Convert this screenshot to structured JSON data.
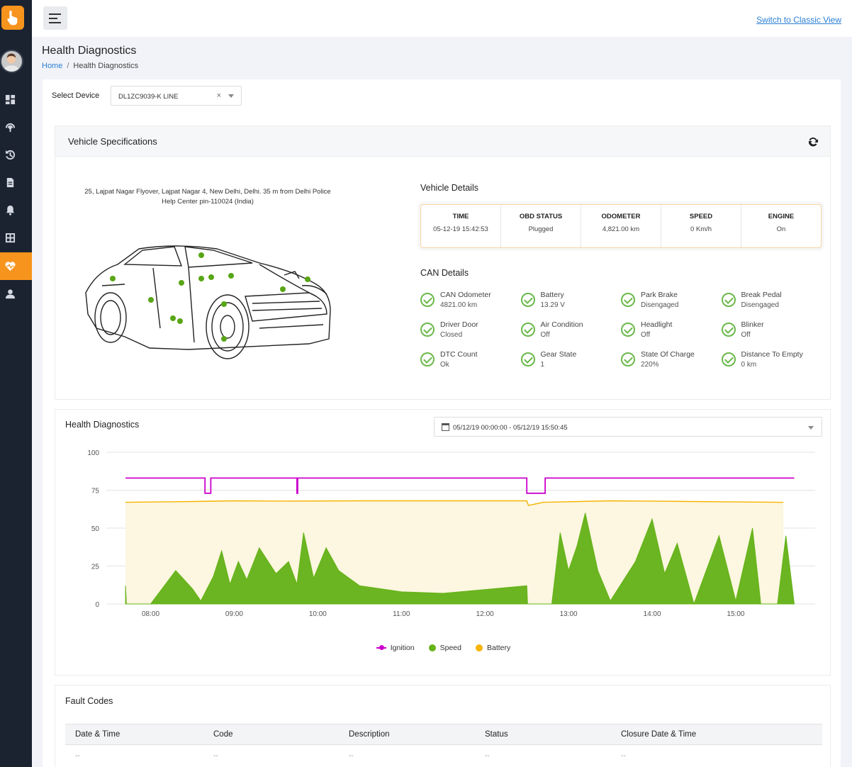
{
  "header": {
    "classic_link": "Switch to Classic View",
    "page_title": "Health Diagnostics",
    "breadcrumb": {
      "home": "Home",
      "current": "Health Diagnostics"
    }
  },
  "device": {
    "label": "Select Device",
    "value": "DL1ZC9039-K LINE"
  },
  "vehicle_specs": {
    "title": "Vehicle Specifications",
    "address": "25, Lajpat Nagar Flyover, Lajpat Nagar 4, New Delhi, Delhi. 35 m from Delhi Police Help Center pin-110024 (India)"
  },
  "vehicle_details": {
    "title": "Vehicle Details",
    "columns": [
      {
        "label": "TIME",
        "value": "05-12-19 15:42:53"
      },
      {
        "label": "OBD STATUS",
        "value": "Plugged"
      },
      {
        "label": "ODOMETER",
        "value": "4,821.00 km"
      },
      {
        "label": "SPEED",
        "value": "0 Km/h"
      },
      {
        "label": "ENGINE",
        "value": "On"
      }
    ]
  },
  "can_details": {
    "title": "CAN Details",
    "items": [
      {
        "name": "CAN Odometer",
        "value": "4821.00 km"
      },
      {
        "name": "Battery",
        "value": "13.29 V"
      },
      {
        "name": "Park Brake",
        "value": "Disengaged"
      },
      {
        "name": "Break Pedal",
        "value": "Disengaged"
      },
      {
        "name": "Driver Door",
        "value": "Closed"
      },
      {
        "name": "Air Condition",
        "value": "Off"
      },
      {
        "name": "Headlight",
        "value": "Off"
      },
      {
        "name": "Blinker",
        "value": "Off"
      },
      {
        "name": "DTC Count",
        "value": "Ok"
      },
      {
        "name": "Gear State",
        "value": "1"
      },
      {
        "name": "State Of Charge",
        "value": "220%"
      },
      {
        "name": "Distance To Empty",
        "value": "0 km"
      }
    ]
  },
  "health": {
    "title": "Health Diagnostics",
    "date_range": "05/12/19 00:00:00 - 05/12/19 15:50:45"
  },
  "chart_data": {
    "type": "line",
    "x_ticks": [
      "08:00",
      "09:00",
      "10:00",
      "11:00",
      "12:00",
      "13:00",
      "14:00",
      "15:00"
    ],
    "y_ticks": [
      "0",
      "25",
      "50",
      "75",
      "100"
    ],
    "ylim": [
      0,
      100
    ],
    "grid": true,
    "legend": "bottom",
    "series": [
      {
        "name": "Ignition",
        "color": "#cc00cc",
        "type": "step",
        "points": [
          [
            7.7,
            83
          ],
          [
            8.65,
            83
          ],
          [
            8.65,
            73
          ],
          [
            8.72,
            73
          ],
          [
            8.72,
            83
          ],
          [
            9.75,
            83
          ],
          [
            9.75,
            73
          ],
          [
            9.76,
            73
          ],
          [
            9.76,
            83
          ],
          [
            12.5,
            83
          ],
          [
            12.5,
            73
          ],
          [
            12.72,
            73
          ],
          [
            12.72,
            83
          ],
          [
            15.7,
            83
          ]
        ]
      },
      {
        "name": "Speed",
        "color": "#66b319",
        "type": "area",
        "points": [
          [
            7.7,
            12
          ],
          [
            7.71,
            0
          ],
          [
            8.0,
            0
          ],
          [
            8.3,
            22
          ],
          [
            8.5,
            10
          ],
          [
            8.6,
            2
          ],
          [
            8.75,
            18
          ],
          [
            8.85,
            35
          ],
          [
            8.95,
            13
          ],
          [
            9.05,
            28
          ],
          [
            9.15,
            16
          ],
          [
            9.3,
            37
          ],
          [
            9.5,
            20
          ],
          [
            9.65,
            28
          ],
          [
            9.75,
            13
          ],
          [
            9.83,
            47
          ],
          [
            9.95,
            17
          ],
          [
            10.1,
            37
          ],
          [
            10.25,
            22
          ],
          [
            10.5,
            12
          ],
          [
            11.0,
            8
          ],
          [
            11.5,
            7
          ],
          [
            11.9,
            9
          ],
          [
            12.5,
            12
          ],
          [
            12.51,
            0
          ],
          [
            12.8,
            0
          ],
          [
            12.9,
            47
          ],
          [
            13.0,
            22
          ],
          [
            13.1,
            38
          ],
          [
            13.2,
            60
          ],
          [
            13.35,
            22
          ],
          [
            13.5,
            2
          ],
          [
            13.8,
            28
          ],
          [
            14.0,
            56
          ],
          [
            14.15,
            20
          ],
          [
            14.3,
            40
          ],
          [
            14.5,
            0
          ],
          [
            14.8,
            45
          ],
          [
            15.0,
            2
          ],
          [
            15.2,
            50
          ],
          [
            15.3,
            0
          ],
          [
            15.5,
            0
          ],
          [
            15.6,
            45
          ],
          [
            15.7,
            0
          ]
        ]
      },
      {
        "name": "Battery",
        "color": "#f5b400",
        "type": "area",
        "points": [
          [
            7.7,
            67
          ],
          [
            8.5,
            67.5
          ],
          [
            9.0,
            68
          ],
          [
            9.5,
            67.8
          ],
          [
            10.5,
            68
          ],
          [
            12.5,
            68
          ],
          [
            12.52,
            65
          ],
          [
            12.7,
            67
          ],
          [
            13.5,
            68
          ],
          [
            14.5,
            67.5
          ],
          [
            15.5,
            67
          ],
          [
            15.57,
            67
          ]
        ]
      }
    ]
  },
  "fault_codes": {
    "title": "Fault Codes",
    "columns": [
      "Date & Time",
      "Code",
      "Description",
      "Status",
      "Closure Date & Time"
    ],
    "rows": [
      [
        "--",
        "--",
        "--",
        "--",
        "--"
      ]
    ]
  }
}
